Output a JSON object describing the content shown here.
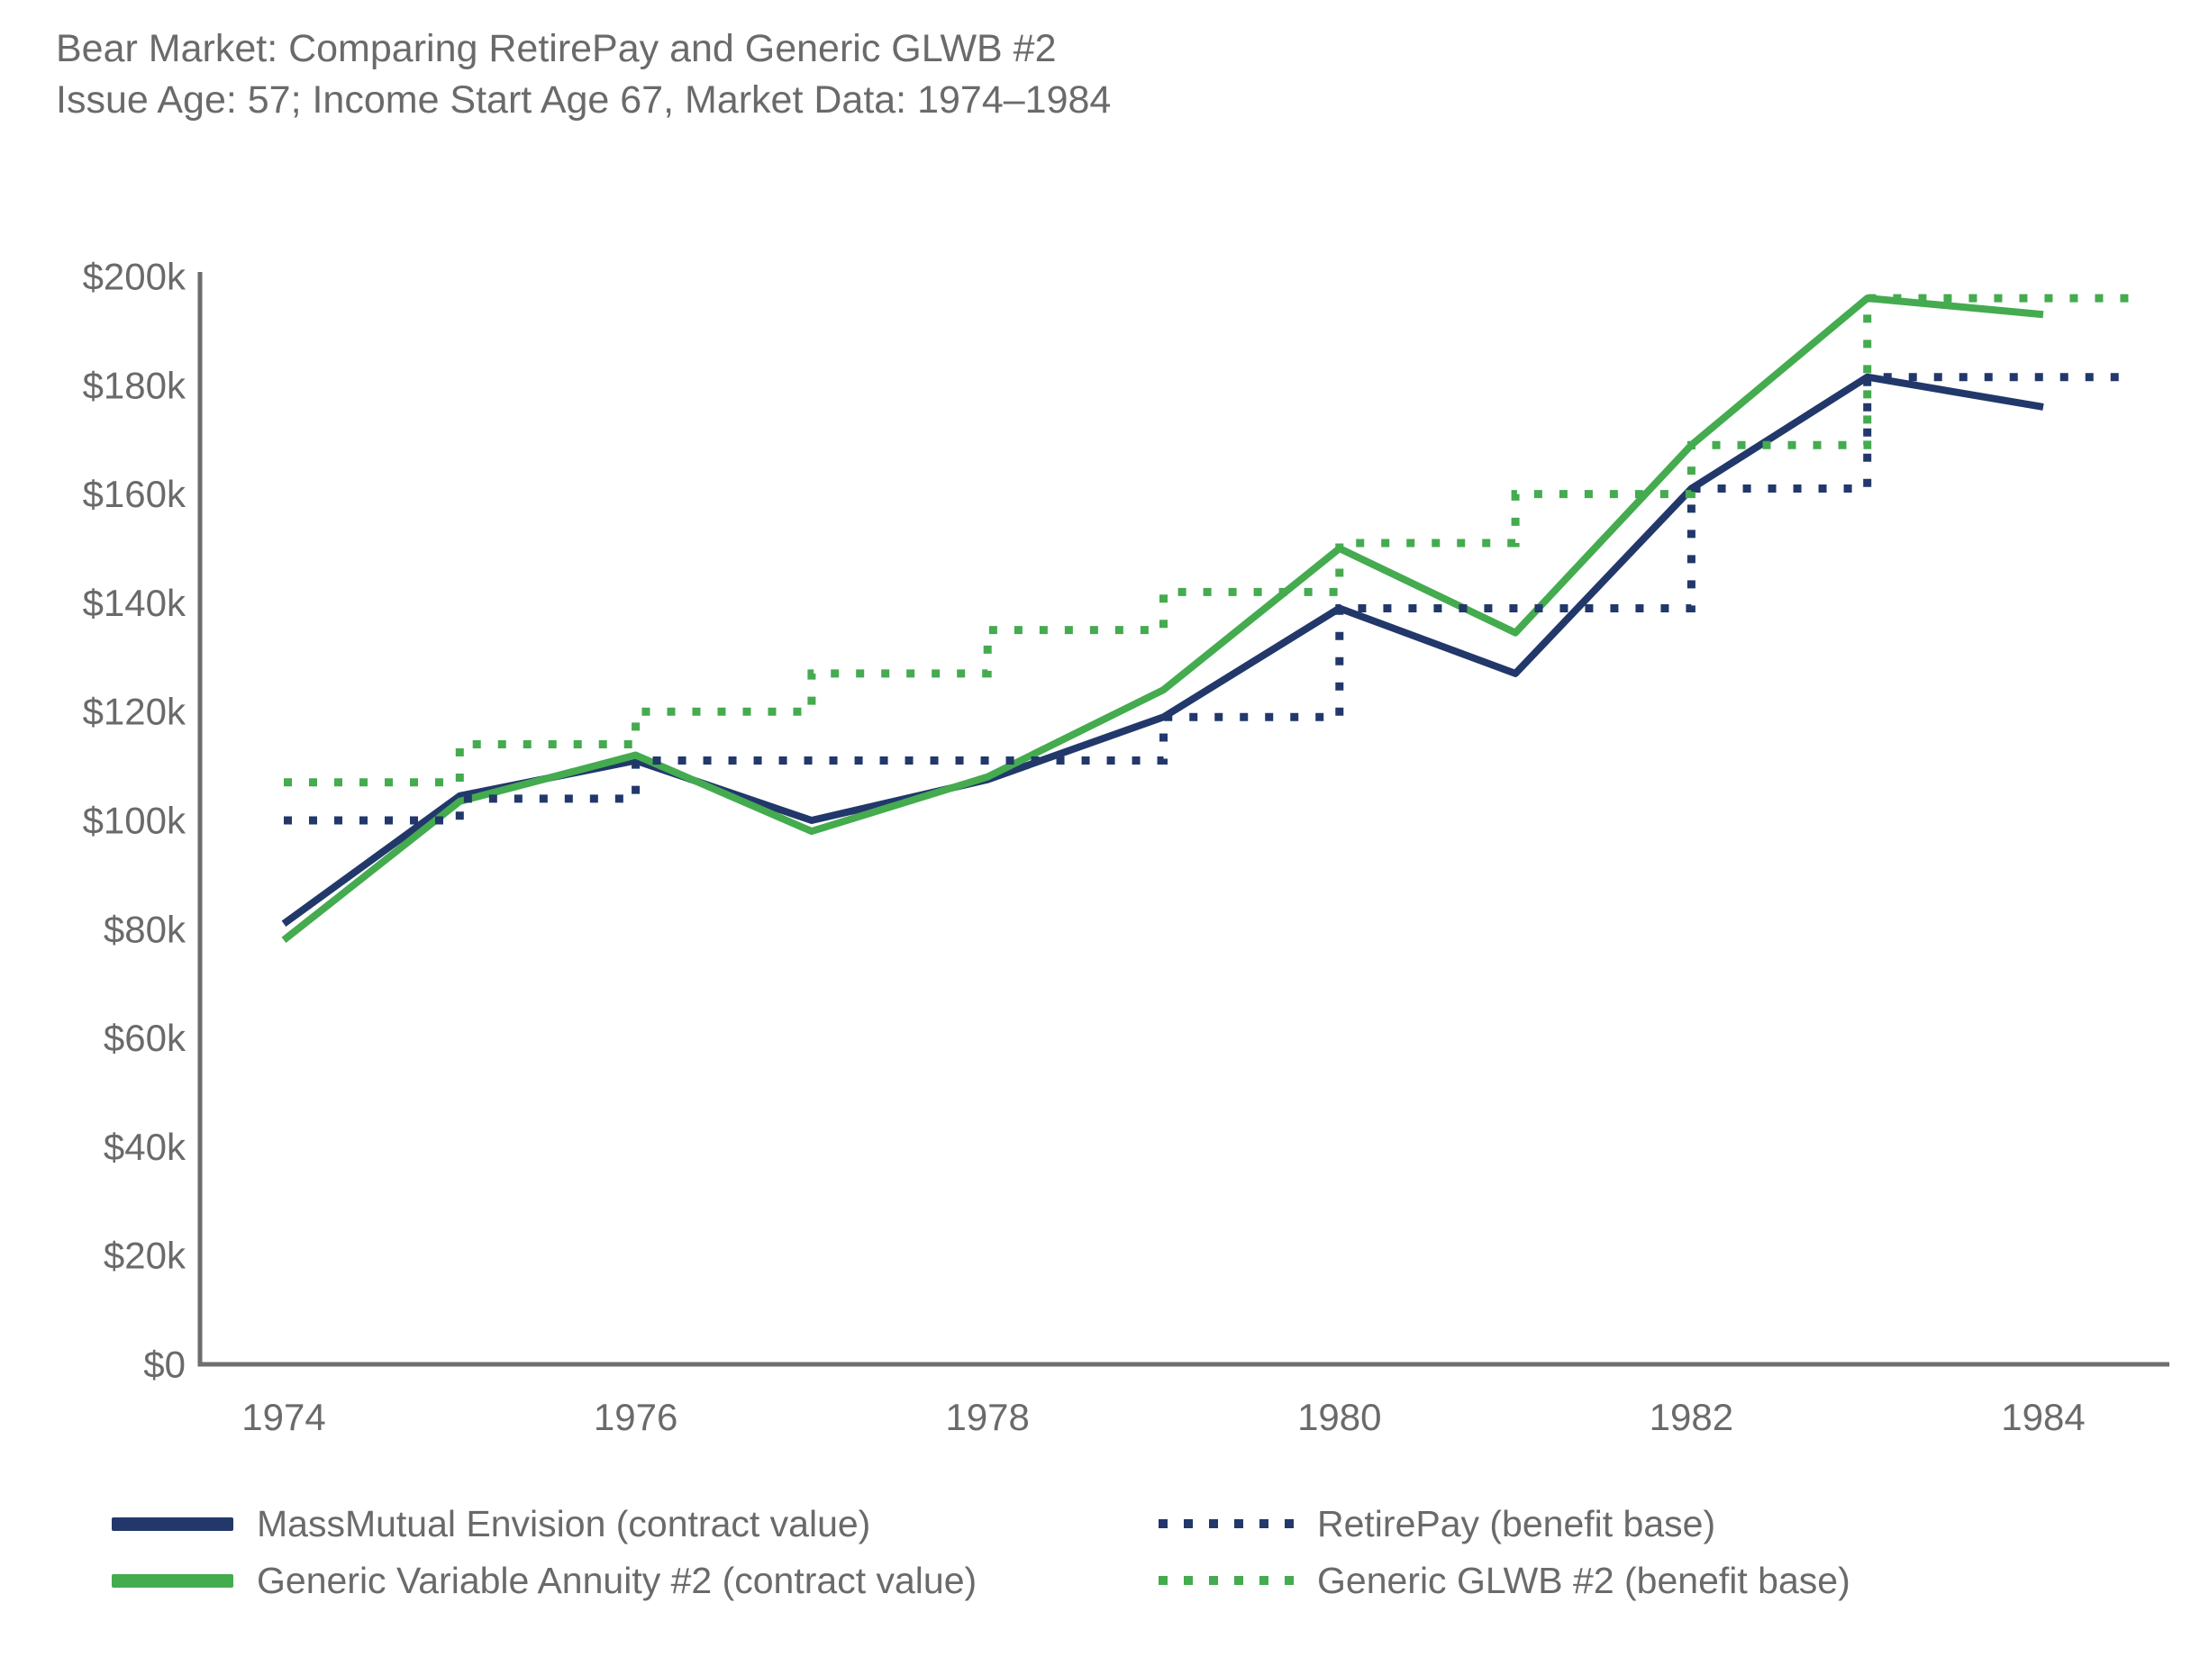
{
  "title": {
    "line1": "Bear Market: Comparing RetirePay and Generic GLWB #2",
    "line2": "Issue Age: 57; Income Start Age 67, Market Data: 1974–1984"
  },
  "chart_data": {
    "type": "line",
    "units": "USD thousands",
    "x": [
      1974,
      1975,
      1976,
      1977,
      1978,
      1979,
      1980,
      1981,
      1982,
      1983,
      1984
    ],
    "x_ticks": [
      1974,
      1976,
      1978,
      1980,
      1982,
      1984
    ],
    "x_tick_labels": [
      "1974",
      "1976",
      "1978",
      "1980",
      "1982",
      "1984"
    ],
    "y_ticks": [
      0,
      20,
      40,
      60,
      80,
      100,
      120,
      140,
      160,
      180,
      200
    ],
    "y_tick_labels": [
      "$0",
      "$20k",
      "$40k",
      "$60k",
      "$80k",
      "$100k",
      "$120k",
      "$140k",
      "$160k",
      "$180k",
      "$200k"
    ],
    "ylim": [
      0,
      200
    ],
    "grid": false,
    "legend_position": "bottom",
    "series": [
      {
        "name": "MassMutual Envision (contract value)",
        "line_type": "line",
        "style": "solid",
        "color": "#22386B",
        "values": [
          81,
          104.5,
          111,
          100,
          107.5,
          119,
          139,
          127,
          161,
          181.5,
          176
        ]
      },
      {
        "name": "Generic Variable Annuity #2 (contract value)",
        "line_type": "line",
        "style": "solid",
        "color": "#44AB4F",
        "values": [
          78,
          103.5,
          112,
          98,
          108,
          124,
          150,
          134.5,
          169,
          196,
          193
        ]
      },
      {
        "name": "RetirePay (benefit base)",
        "line_type": "step",
        "style": "dotted",
        "color": "#22386B",
        "values": [
          100,
          104,
          111,
          111,
          111,
          119,
          139,
          139,
          161,
          181.5,
          181.5
        ]
      },
      {
        "name": "Generic GLWB #2 (benefit base)",
        "line_type": "step",
        "style": "dotted",
        "color": "#44AB4F",
        "values": [
          107,
          114,
          120,
          127,
          135,
          142,
          151,
          160,
          169,
          196,
          196
        ]
      }
    ]
  },
  "legend": {
    "items": [
      {
        "label": "MassMutual Envision (contract value)",
        "swatch": "solid",
        "color": "#22386B"
      },
      {
        "label": "Generic Variable Annuity #2 (contract value)",
        "swatch": "solid",
        "color": "#44AB4F"
      },
      {
        "label": "RetirePay (benefit base)",
        "swatch": "dotted",
        "color": "#22386B"
      },
      {
        "label": "Generic GLWB #2 (benefit base)",
        "swatch": "dotted",
        "color": "#44AB4F"
      }
    ]
  },
  "colors": {
    "navy": "#22386B",
    "green": "#44AB4F",
    "text": "#6A6A6A",
    "axis": "#6E6E6E",
    "background": "#FFFFFF"
  }
}
